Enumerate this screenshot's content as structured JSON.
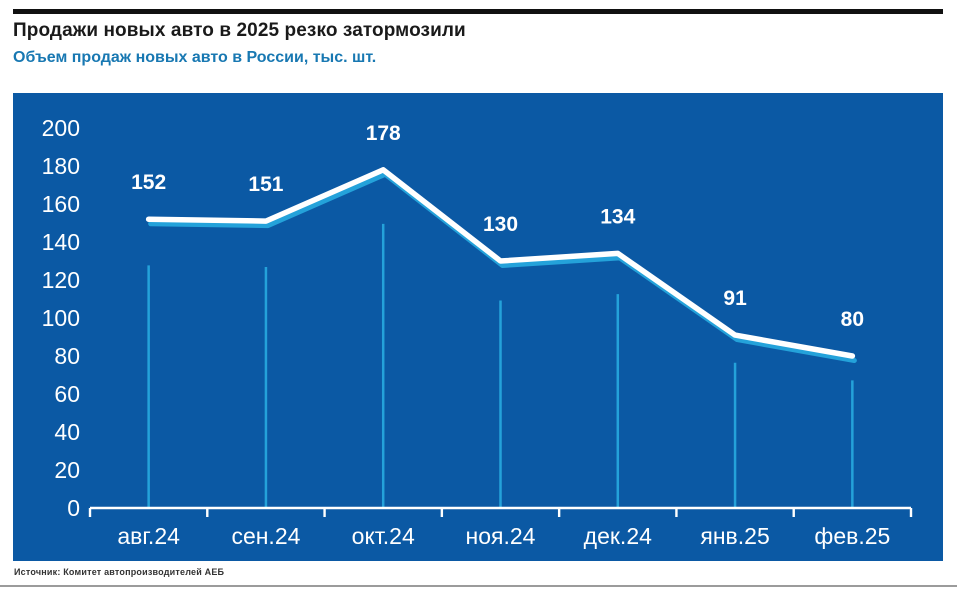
{
  "header": {
    "title": "Продажи новых авто в 2025 резко затормозили",
    "subtitle": "Объем продаж новых авто в России, тыс. шт."
  },
  "footer": {
    "source": "Источник: Комитет автопроизводителей АЕБ"
  },
  "chart_data": {
    "type": "line",
    "title": "Продажи новых авто в 2025 резко затормозили",
    "ylabel": "Объем продаж новых авто в России, тыс. шт.",
    "categories": [
      "авг.24",
      "сен.24",
      "окт.24",
      "ноя.24",
      "дек.24",
      "янв.25",
      "фев.25"
    ],
    "series": [
      {
        "name": "Объем продаж новых авто в России, тыс. шт.",
        "values": [
          152,
          151,
          178,
          130,
          134,
          91,
          80
        ]
      }
    ],
    "data_labels": [
      152,
      151,
      178,
      130,
      134,
      91,
      80
    ],
    "y_ticks": [
      0,
      20,
      40,
      60,
      80,
      100,
      120,
      140,
      160,
      180,
      200
    ],
    "ylim": [
      0,
      200
    ],
    "grid": false,
    "legend": "none",
    "colors": {
      "panel_bg": "#0b59a4",
      "line": "#ffffff",
      "line_shadow": "#24a2da",
      "drop_line": "#24a2da",
      "axis": "#ffffff",
      "tick_text": "#ffffff",
      "data_label_text": "#ffffff",
      "title_text": "#1a1a1a",
      "subtitle_text": "#1878b2",
      "source_text": "#333333",
      "top_rule": "#111111",
      "bottom_rule": "#9b9b9b"
    }
  }
}
